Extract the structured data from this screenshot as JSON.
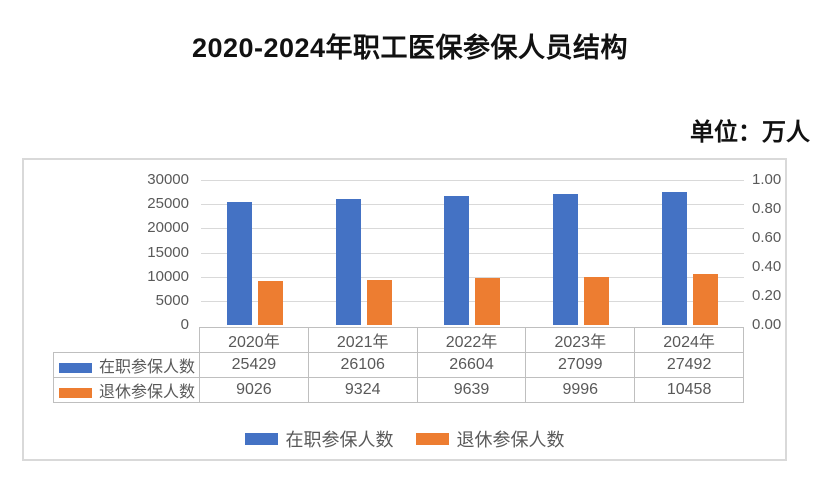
{
  "title": "2020-2024年职工医保参保人员结构",
  "unit_label": "单位：万人",
  "colors": {
    "series_active": "#4472C4",
    "series_retired": "#ED7D31",
    "gridline": "#d9d9d9",
    "table_border": "#bfbfbf",
    "axis_text": "#595959"
  },
  "chart_data": {
    "type": "bar",
    "title": "2020-2024年职工医保参保人员结构",
    "unit": "单位：万人",
    "categories": [
      "2020年",
      "2021年",
      "2022年",
      "2023年",
      "2024年"
    ],
    "series": [
      {
        "name": "在职参保人数",
        "color": "#4472C4",
        "values": [
          25429,
          26106,
          26604,
          27099,
          27492
        ]
      },
      {
        "name": "退休参保人数",
        "color": "#ED7D31",
        "values": [
          9026,
          9324,
          9639,
          9996,
          10458
        ]
      }
    ],
    "left_axis": {
      "min": 0,
      "max": 30000,
      "ticks": [
        "0",
        "5000",
        "10000",
        "15000",
        "20000",
        "25000",
        "30000"
      ]
    },
    "right_axis": {
      "min": 0,
      "max": 1.0,
      "ticks": [
        "0.00",
        "0.20",
        "0.40",
        "0.60",
        "0.80",
        "1.00"
      ]
    },
    "grid": true,
    "legend_position": "bottom",
    "data_table_shown": true
  }
}
